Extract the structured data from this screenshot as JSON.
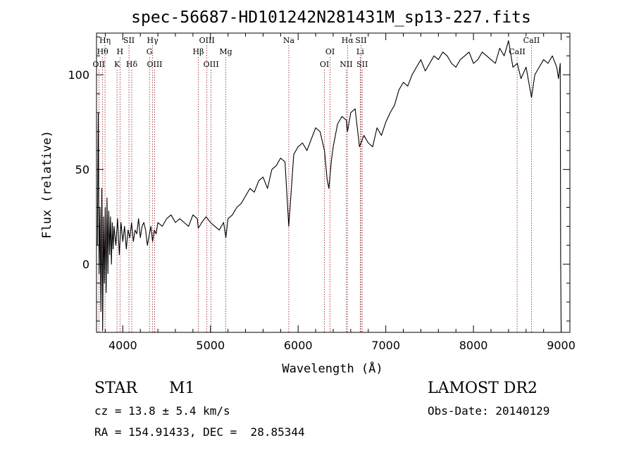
{
  "chart_data": {
    "type": "line",
    "title": "spec-56687-HD101242N281431M_sp13-227.fits",
    "xlabel": "Wavelength (Å)",
    "ylabel": "Flux (relative)",
    "xlim": [
      3700,
      9100
    ],
    "ylim": [
      -36,
      122
    ],
    "x_ticks": [
      4000,
      5000,
      6000,
      7000,
      8000,
      9000
    ],
    "y_ticks": [
      0,
      50,
      100
    ],
    "grid": false,
    "line_color": "#000000",
    "line_marker_color": "#8b1a1a",
    "series": [
      {
        "x": [
          3710,
          3720,
          3730,
          3740,
          3750,
          3760,
          3770,
          3780,
          3790,
          3800,
          3810,
          3820,
          3830,
          3840,
          3850,
          3860,
          3870,
          3880,
          3890,
          3900,
          3920,
          3940,
          3960,
          3980,
          4000,
          4020,
          4040,
          4060,
          4080,
          4100,
          4120,
          4140,
          4160,
          4180,
          4200,
          4220,
          4240,
          4260,
          4280,
          4300,
          4320,
          4340,
          4360,
          4380,
          4400,
          4450,
          4500,
          4550,
          4600,
          4650,
          4700,
          4750,
          4800,
          4850,
          4861,
          4900,
          4950,
          5000,
          5050,
          5100,
          5150,
          5175,
          5200,
          5250,
          5300,
          5350,
          5400,
          5450,
          5500,
          5550,
          5600,
          5650,
          5700,
          5750,
          5800,
          5850,
          5893,
          5950,
          6000,
          6050,
          6100,
          6150,
          6200,
          6250,
          6300,
          6330,
          6350,
          6380,
          6400,
          6450,
          6500,
          6550,
          6563,
          6600,
          6650,
          6700,
          6750,
          6800,
          6850,
          6900,
          6950,
          7000,
          7050,
          7100,
          7150,
          7200,
          7250,
          7300,
          7350,
          7400,
          7450,
          7500,
          7550,
          7600,
          7650,
          7700,
          7750,
          7800,
          7850,
          7900,
          7950,
          8000,
          8050,
          8100,
          8150,
          8200,
          8250,
          8300,
          8350,
          8400,
          8450,
          8500,
          8542,
          8600,
          8662,
          8700,
          8750,
          8800,
          8850,
          8900,
          8950,
          8970,
          8990,
          8995,
          9000
        ],
        "y": [
          10,
          80,
          -5,
          30,
          -25,
          40,
          -35,
          25,
          -10,
          30,
          -15,
          35,
          -5,
          28,
          5,
          25,
          0,
          22,
          8,
          20,
          10,
          24,
          5,
          22,
          12,
          20,
          8,
          18,
          14,
          22,
          12,
          18,
          16,
          24,
          14,
          20,
          22,
          18,
          10,
          15,
          20,
          12,
          18,
          16,
          22,
          20,
          24,
          26,
          22,
          24,
          22,
          20,
          26,
          24,
          19,
          22,
          25,
          22,
          20,
          18,
          22,
          14,
          24,
          26,
          30,
          32,
          36,
          40,
          38,
          44,
          46,
          40,
          50,
          52,
          56,
          54,
          20,
          58,
          62,
          64,
          60,
          66,
          72,
          70,
          60,
          45,
          40,
          55,
          62,
          74,
          78,
          76,
          70,
          80,
          82,
          62,
          68,
          64,
          62,
          72,
          68,
          75,
          80,
          84,
          92,
          96,
          94,
          100,
          104,
          108,
          102,
          106,
          110,
          108,
          112,
          110,
          106,
          104,
          108,
          110,
          112,
          106,
          108,
          112,
          110,
          108,
          106,
          114,
          110,
          118,
          104,
          106,
          98,
          104,
          88,
          100,
          104,
          108,
          106,
          110,
          104,
          98,
          106,
          2,
          -36
        ]
      }
    ],
    "line_labels": [
      {
        "x": 3727,
        "label": "OII",
        "row": 3
      },
      {
        "x": 3770,
        "label": "Hθ",
        "row": 2
      },
      {
        "x": 3797,
        "label": "Hη",
        "row": 1
      },
      {
        "x": 3934,
        "label": "K",
        "row": 3
      },
      {
        "x": 3968,
        "label": "H",
        "row": 2
      },
      {
        "x": 4070,
        "label": "SII",
        "row": 1
      },
      {
        "x": 4102,
        "label": "Hδ",
        "row": 3
      },
      {
        "x": 4304,
        "label": "G",
        "row": 2
      },
      {
        "x": 4340,
        "label": "Hγ",
        "row": 1
      },
      {
        "x": 4363,
        "label": "OIII",
        "row": 3
      },
      {
        "x": 4861,
        "label": "Hβ",
        "row": 2
      },
      {
        "x": 4959,
        "label": "OIII",
        "row": 1
      },
      {
        "x": 5007,
        "label": "OIII",
        "row": 3
      },
      {
        "x": 5175,
        "label": "Mg",
        "row": 2
      },
      {
        "x": 5893,
        "label": "Na",
        "row": 1
      },
      {
        "x": 6300,
        "label": "OI",
        "row": 3
      },
      {
        "x": 6364,
        "label": "OI",
        "row": 2
      },
      {
        "x": 6548,
        "label": "NII",
        "row": 3
      },
      {
        "x": 6563,
        "label": "Hα",
        "row": 1
      },
      {
        "x": 6708,
        "label": "Li",
        "row": 2
      },
      {
        "x": 6717,
        "label": "SII",
        "row": 1
      },
      {
        "x": 6731,
        "label": "SII",
        "row": 3
      },
      {
        "x": 8498,
        "label": "CaII",
        "row": 2
      },
      {
        "x": 8662,
        "label": "CaII",
        "row": 1
      }
    ]
  },
  "info": {
    "object_class": "STAR",
    "subclass": "M1",
    "survey": "LAMOST DR2",
    "cz": "cz = 13.8 ± 5.4 km/s",
    "obs_date": "Obs-Date: 20140129",
    "coords": "RA = 154.91433, DEC =  28.85344"
  }
}
